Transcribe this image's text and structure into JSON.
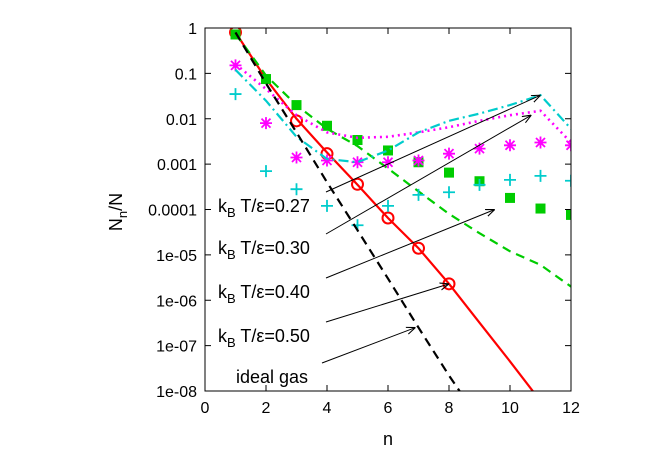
{
  "chart_data": {
    "type": "line",
    "xlabel": "n",
    "ylabel": "N_n/N",
    "xlim": [
      0,
      12
    ],
    "ylim": [
      1e-08,
      1
    ],
    "yscale": "log",
    "xticks": [
      0,
      2,
      4,
      6,
      8,
      10,
      12
    ],
    "xtick_labels": [
      "0",
      "2",
      "4",
      "6",
      "8",
      "10",
      "12"
    ],
    "yticks": [
      1,
      0.1,
      0.01,
      0.001,
      0.0001,
      1e-05,
      1e-06,
      1e-07,
      1e-08
    ],
    "ytick_labels": [
      "1",
      "0.1",
      "0.01",
      "0.001",
      "0.0001",
      "1e-05",
      "1e-06",
      "1e-07",
      "1e-08"
    ],
    "grid": false,
    "legend": "none",
    "series": [
      {
        "name": "k_B T/ε=0.50",
        "color": "#ff0000",
        "line_style": "solid",
        "marker": "open-circle",
        "line": {
          "x": [
            1,
            2,
            3,
            4,
            5,
            6,
            7,
            8,
            9,
            10,
            11
          ],
          "y": [
            0.8,
            0.075,
            0.01,
            0.0018,
            0.00035,
            6.5e-05,
            1.4e-05,
            2.3e-06,
            3.2e-07,
            4.5e-08,
            6e-09
          ]
        },
        "points": {
          "x": [
            1,
            3,
            4,
            5,
            6,
            7,
            8
          ],
          "y": [
            0.8,
            0.009,
            0.0017,
            0.00036,
            6.5e-05,
            1.4e-05,
            2.3e-06
          ]
        }
      },
      {
        "name": "k_B T/ε=0.40",
        "color": "#00cc00",
        "line_style": "dashed",
        "marker": "filled-square",
        "line": {
          "x": [
            1,
            2,
            3,
            4,
            5,
            6,
            7,
            8,
            9,
            10,
            11,
            12
          ],
          "y": [
            0.75,
            0.09,
            0.02,
            0.006,
            0.0025,
            0.0008,
            0.00025,
            8e-05,
            3e-05,
            1.2e-05,
            6e-06,
            2e-06
          ]
        },
        "points": {
          "x": [
            1,
            2,
            3,
            4,
            5,
            6,
            7,
            8,
            9,
            10,
            11,
            12
          ],
          "y": [
            0.72,
            0.075,
            0.02,
            0.007,
            0.0034,
            0.002,
            0.0011,
            0.00065,
            0.00042,
            0.00018,
            0.000105,
            7.6e-05
          ]
        }
      },
      {
        "name": "k_B T/ε=0.30",
        "color": "#ff00ff",
        "line_style": "dotted",
        "marker": "star",
        "line": {
          "x": [
            1,
            2,
            3,
            4,
            5,
            6,
            7,
            8,
            9,
            10,
            11,
            12
          ],
          "y": [
            0.16,
            0.045,
            0.012,
            0.005,
            0.0038,
            0.004,
            0.005,
            0.0065,
            0.009,
            0.012,
            0.015,
            0.003
          ]
        },
        "points": {
          "x": [
            1,
            2,
            3,
            4,
            5,
            6,
            7,
            8,
            9,
            10,
            11,
            12
          ],
          "y": [
            0.15,
            0.008,
            0.0014,
            0.0012,
            0.0011,
            0.0011,
            0.0012,
            0.0017,
            0.0022,
            0.0026,
            0.003,
            0.0026
          ]
        }
      },
      {
        "name": "k_B T/ε=0.27",
        "color": "#00cccc",
        "line_style": "dash-dot",
        "marker": "plus",
        "line": {
          "x": [
            1,
            2,
            3,
            4,
            5,
            6,
            7,
            8,
            9,
            10,
            11,
            12
          ],
          "y": [
            0.12,
            0.025,
            0.004,
            0.0013,
            0.0011,
            0.002,
            0.005,
            0.009,
            0.013,
            0.02,
            0.033,
            0.006
          ]
        },
        "points": {
          "x": [
            1,
            2,
            3,
            4,
            5,
            6,
            7,
            8,
            9,
            10,
            11,
            12
          ],
          "y": [
            0.035,
            0.0007,
            0.00028,
            0.00012,
            4.5e-05,
            0.00012,
            0.00021,
            0.00024,
            0.00035,
            0.00045,
            0.00055,
            0.00043
          ]
        }
      },
      {
        "name": "ideal gas",
        "color": "#000000",
        "line_style": "dashed",
        "marker": "none",
        "line": {
          "x": [
            1,
            2,
            3,
            4,
            5,
            6,
            7,
            8,
            8.5
          ],
          "y": [
            0.8,
            0.06,
            0.005,
            0.0004,
            3.5e-05,
            3e-06,
            2.5e-07,
            2.2e-08,
            7e-09
          ]
        }
      }
    ],
    "annotations": [
      {
        "text_main": "k",
        "text_sub": "B",
        "text_rest": " T/ε=0.27",
        "arrow_to": [
          11,
          0.033
        ]
      },
      {
        "text_main": "k",
        "text_sub": "B",
        "text_rest": " T/ε=0.30",
        "arrow_to": [
          10.7,
          0.012
        ]
      },
      {
        "text_main": "k",
        "text_sub": "B",
        "text_rest": " T/ε=0.40",
        "arrow_to": [
          9.5,
          0.0001
        ]
      },
      {
        "text_main": "k",
        "text_sub": "B",
        "text_rest": " T/ε=0.50",
        "arrow_to": [
          8,
          2.3e-06
        ]
      },
      {
        "text_main": "ideal gas",
        "text_sub": "",
        "text_rest": "",
        "arrow_to": [
          6.9,
          2.5e-07
        ]
      }
    ],
    "ylabel_main": "N",
    "ylabel_sub1": "n",
    "ylabel_rest": "/N"
  }
}
